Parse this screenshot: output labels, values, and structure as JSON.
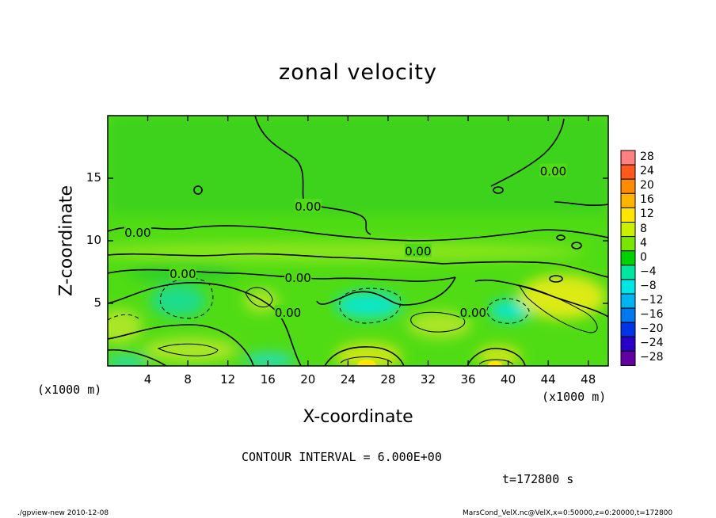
{
  "chart_data": {
    "type": "heatmap",
    "title": "zonal velocity",
    "xlabel": "X-coordinate",
    "ylabel": "Z-coordinate",
    "x_unit": "(x1000 m)",
    "x_ticks": [
      4,
      8,
      12,
      16,
      20,
      24,
      28,
      32,
      36,
      40,
      44,
      48
    ],
    "y_ticks": [
      5,
      10,
      15
    ],
    "xlim": [
      0,
      50
    ],
    "ylim": [
      0,
      20
    ],
    "contour_interval": "CONTOUR INTERVAL = 6.000E+00",
    "time_label": "t=172800 s",
    "contour_labels": [
      {
        "text": "0.00",
        "x": 3,
        "z": 10.7
      },
      {
        "text": "0.00",
        "x": 20,
        "z": 12.8
      },
      {
        "text": "0.00",
        "x": 7.5,
        "z": 7.4
      },
      {
        "text": "0.00",
        "x": 19,
        "z": 7.1
      },
      {
        "text": "0.00",
        "x": 31,
        "z": 9.2
      },
      {
        "text": "0.00",
        "x": 18,
        "z": 4.3
      },
      {
        "text": "0.00",
        "x": 36.5,
        "z": 4.3
      },
      {
        "text": "0.00",
        "x": 44.5,
        "z": 15.6
      }
    ],
    "colorbar": {
      "levels": [
        28,
        24,
        20,
        16,
        12,
        8,
        4,
        0,
        -4,
        -8,
        -12,
        -16,
        -20,
        -24,
        -28
      ],
      "labels": [
        "28",
        "24",
        "20",
        "16",
        "12",
        "8",
        "4",
        "0",
        "−4",
        "−8",
        "−12",
        "−16",
        "−20",
        "−24",
        "−28"
      ],
      "colors": [
        "#ff8080",
        "#ff5a1e",
        "#ff8c00",
        "#ffb400",
        "#ffe600",
        "#c8f000",
        "#78e600",
        "#00d200",
        "#00e6a0",
        "#00e6e6",
        "#00b4f0",
        "#0078f0",
        "#0032e6",
        "#2800c8",
        "#6400a0"
      ]
    }
  },
  "footer": {
    "left": "./gpview-new  2010-12-08",
    "right": "MarsCond_VelX.nc@VelX,x=0:50000,z=0:20000,t=172800"
  }
}
